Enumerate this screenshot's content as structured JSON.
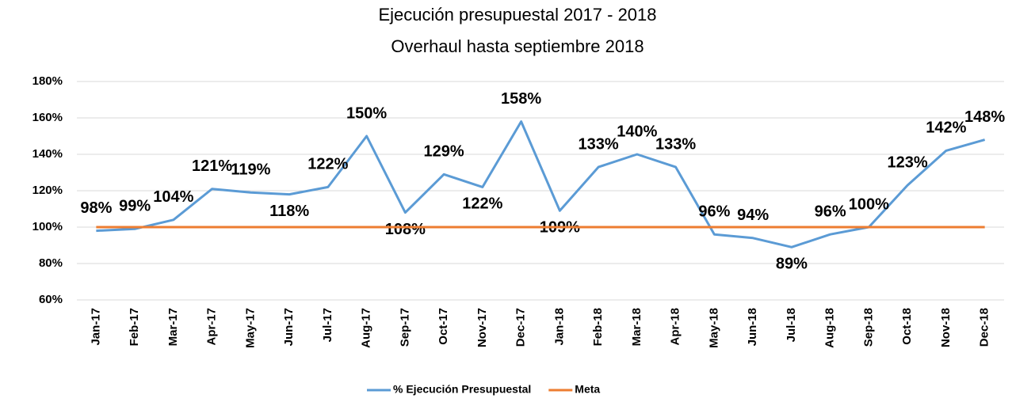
{
  "chart_data": {
    "type": "line",
    "title": "Ejecución presupuestal 2017 - 2018",
    "subtitle": "Overhaul hasta septiembre 2018",
    "categories": [
      "Jan-17",
      "Feb-17",
      "Mar-17",
      "Apr-17",
      "May-17",
      "Jun-17",
      "Jul-17",
      "Aug-17",
      "Sep-17",
      "Oct-17",
      "Nov-17",
      "Dec-17",
      "Jan-18",
      "Feb-18",
      "Mar-18",
      "Apr-18",
      "May-18",
      "Jun-18",
      "Jul-18",
      "Aug-18",
      "Sep-18",
      "Oct-18",
      "Nov-18",
      "Dec-18"
    ],
    "series": [
      {
        "name": "% Ejecución Presupuestal",
        "color": "#5b9bd5",
        "values": [
          98,
          99,
          104,
          121,
          119,
          118,
          122,
          150,
          108,
          129,
          122,
          158,
          109,
          133,
          140,
          133,
          96,
          94,
          89,
          96,
          100,
          123,
          142,
          148
        ],
        "value_labels": [
          "98%",
          "99%",
          "104%",
          "121%",
          "119%",
          "118%",
          "122%",
          "150%",
          "108%",
          "129%",
          "122%",
          "158%",
          "109%",
          "133%",
          "140%",
          "133%",
          "96%",
          "94%",
          "89%",
          "96%",
          "100%",
          "123%",
          "142%",
          "148%"
        ]
      },
      {
        "name": "Meta",
        "color": "#ed7d31",
        "values": [
          100,
          100,
          100,
          100,
          100,
          100,
          100,
          100,
          100,
          100,
          100,
          100,
          100,
          100,
          100,
          100,
          100,
          100,
          100,
          100,
          100,
          100,
          100,
          100
        ]
      }
    ],
    "ylim": [
      60,
      180
    ],
    "yticks": [
      {
        "value": 60,
        "label": "60%"
      },
      {
        "value": 80,
        "label": "80%"
      },
      {
        "value": 100,
        "label": "100%"
      },
      {
        "value": 120,
        "label": "120%"
      },
      {
        "value": 140,
        "label": "140%"
      },
      {
        "value": 160,
        "label": "160%"
      },
      {
        "value": 180,
        "label": "180%"
      }
    ],
    "grid": true,
    "legend": "bottom"
  }
}
